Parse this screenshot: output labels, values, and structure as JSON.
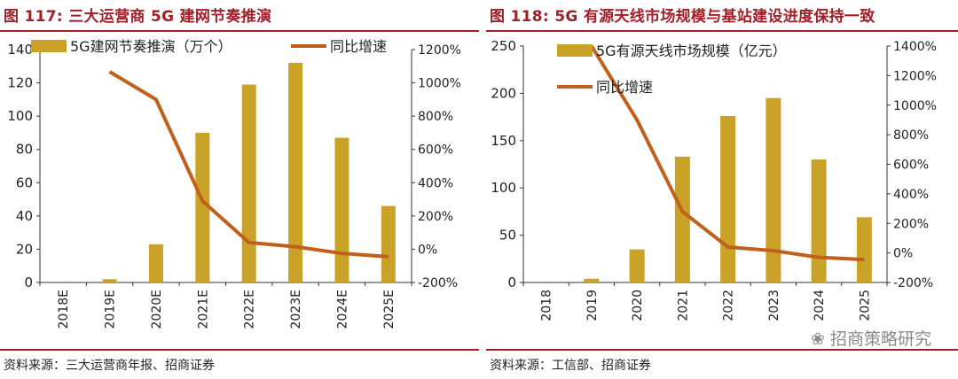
{
  "chart_data": [
    {
      "type": "bar",
      "figure_label": "图 117:",
      "title": "三大运营商 5G 建网节奏推演",
      "categories": [
        "2018E",
        "2019E",
        "2020E",
        "2021E",
        "2022E",
        "2023E",
        "2024E",
        "2025E"
      ],
      "series": [
        {
          "name": "5G建网节奏推演（万个）",
          "type": "bar",
          "axis": "left",
          "color": "#c9a227",
          "values": [
            0,
            2,
            23,
            90,
            119,
            132,
            87,
            46
          ]
        },
        {
          "name": "同比增速",
          "type": "line",
          "axis": "right",
          "color": "#c0601a",
          "values": [
            null,
            1067,
            900,
            290,
            40,
            15,
            -25,
            -45
          ]
        }
      ],
      "ylim": [
        0,
        140
      ],
      "yticks": [
        "0",
        "20",
        "40",
        "60",
        "80",
        "100",
        "120",
        "140"
      ],
      "y2lim": [
        -200,
        1200
      ],
      "y2ticks": [
        "-200%",
        "0%",
        "200%",
        "400%",
        "600%",
        "800%",
        "1000%",
        "1200%"
      ],
      "legend": "top",
      "source": "资料来源：三大运营商年报、招商证券"
    },
    {
      "type": "bar",
      "figure_label": "图 118:",
      "title": "5G 有源天线市场规模与基站建设进度保持一致",
      "categories": [
        "2018",
        "2019",
        "2020",
        "2021",
        "2022",
        "2023",
        "2024",
        "2025"
      ],
      "series": [
        {
          "name": "5G有源天线市场规模（亿元）",
          "type": "bar",
          "axis": "left",
          "color": "#c9a227",
          "values": [
            0,
            4,
            35,
            133,
            176,
            195,
            130,
            69
          ]
        },
        {
          "name": "同比增速",
          "type": "line",
          "axis": "right",
          "color": "#c0601a",
          "values": [
            null,
            1400,
            900,
            280,
            40,
            15,
            -30,
            -45
          ]
        }
      ],
      "ylim": [
        0,
        250
      ],
      "yticks": [
        "0",
        "50",
        "100",
        "150",
        "200",
        "250"
      ],
      "y2lim": [
        -200,
        1400
      ],
      "y2ticks": [
        "-200%",
        "0%",
        "200%",
        "400%",
        "600%",
        "800%",
        "1000%",
        "1200%",
        "1400%"
      ],
      "legend": "top-left",
      "source": "资料来源：工信部、招商证券"
    }
  ],
  "watermark": "招商策略研究"
}
